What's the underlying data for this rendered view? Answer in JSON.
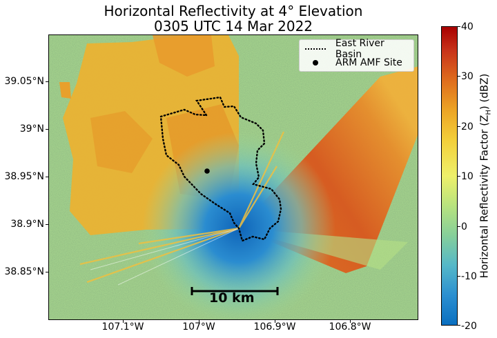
{
  "title": {
    "line1": "Horizontal Reflectivity at 4° Elevation",
    "line2": "0305 UTC 14 Mar 2022"
  },
  "map": {
    "latitude_ticks": [
      "39.05°N",
      "39°N",
      "38.95°N",
      "38.9°N",
      "38.85°N"
    ],
    "longitude_ticks": [
      "107.1°W",
      "107°W",
      "106.9°W",
      "106.8°W"
    ],
    "legend": {
      "basin_label": "East River Basin",
      "site_label": "ARM AMF Site"
    },
    "scale_bar_label": "10 km"
  },
  "colorbar": {
    "label": "Horizontal Reflectivity Factor (Z",
    "label_sub": "H",
    "label_unit": ") (dBZ)",
    "ticks": [
      "40",
      "30",
      "20",
      "10",
      "0",
      "-10",
      "-20"
    ],
    "range": [
      -20,
      40
    ],
    "colors": [
      "#0a6fc0",
      "#55b8c8",
      "#b8e37e",
      "#eef06a",
      "#eca425",
      "#c8331a",
      "#a80000"
    ]
  }
}
